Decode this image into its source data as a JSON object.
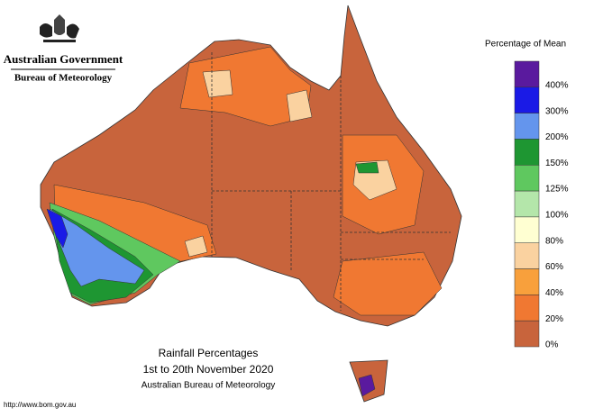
{
  "header": {
    "agency": "Australian Government",
    "bureau": "Bureau of Meteorology"
  },
  "legend": {
    "title": "Percentage of Mean",
    "items": [
      {
        "label": "400%",
        "color": "#5a1a9e"
      },
      {
        "label": "300%",
        "color": "#1a1ae6"
      },
      {
        "label": "200%",
        "color": "#6495ed"
      },
      {
        "label": "150%",
        "color": "#1e9632"
      },
      {
        "label": "125%",
        "color": "#5fc85f"
      },
      {
        "label": "100%",
        "color": "#b4e6aa"
      },
      {
        "label": "80%",
        "color": "#ffffd2"
      },
      {
        "label": "60%",
        "color": "#fad2a0"
      },
      {
        "label": "40%",
        "color": "#f8a03c"
      },
      {
        "label": "20%",
        "color": "#f07832"
      },
      {
        "label": "0%",
        "color": "#c8643c"
      }
    ]
  },
  "map_title": {
    "line1": "Rainfall Percentages",
    "line2": "1st to 20th November 2020",
    "line3": "Australian Bureau of Meteorology"
  },
  "footer": {
    "url": "http://www.bom.gov.au"
  }
}
